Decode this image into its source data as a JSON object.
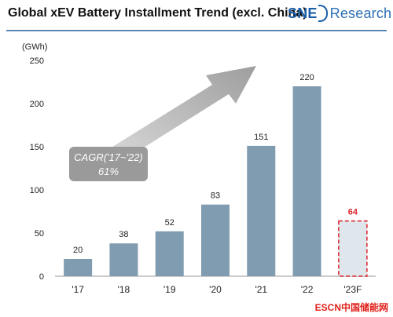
{
  "header": {
    "title": "Global xEV Battery Installment Trend (excl. China)",
    "brand_prefix": "SNE",
    "brand_suffix": "Research"
  },
  "footer": {
    "watermark": "ESCN中国储能网"
  },
  "chart_data": {
    "type": "bar",
    "categories": [
      "'17",
      "'18",
      "'19",
      "'20",
      "'21",
      "'22",
      "'23F"
    ],
    "values": [
      20,
      38,
      52,
      83,
      151,
      220,
      64
    ],
    "forecast_index": 6,
    "unit_label": "(GWh)",
    "ylim": [
      0,
      250
    ],
    "yticks": [
      0,
      50,
      100,
      150,
      200,
      250
    ],
    "grid": false,
    "annotation": {
      "line1": "CAGR('17~'22)",
      "line2": "61%"
    },
    "colors": {
      "bar": "#7f9cb0",
      "forecast_fill": "#dfe6ec",
      "forecast_border": "#d9232a",
      "forecast_label": "#d9232a",
      "arrow": "#b6b6b6",
      "annotation_box": "#9a9a9a"
    }
  }
}
